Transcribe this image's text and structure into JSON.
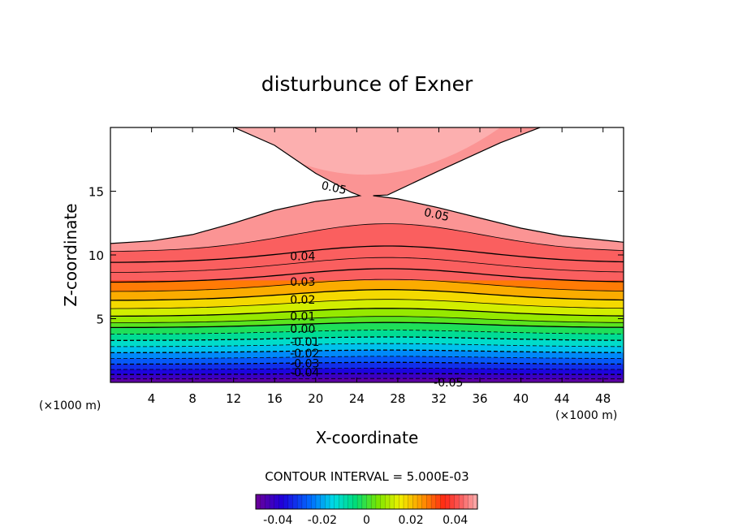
{
  "chart_data": {
    "type": "contour",
    "title": "disturbunce of Exner",
    "xlabel": "X-coordinate",
    "ylabel": "Z-coordinate",
    "x_unit": "(×1000 m)",
    "y_unit": "(×1000 m)",
    "xlim": [
      0,
      50
    ],
    "ylim": [
      0,
      20
    ],
    "x_ticks": [
      4,
      8,
      12,
      16,
      20,
      24,
      28,
      32,
      36,
      40,
      44,
      48
    ],
    "y_ticks": [
      5,
      10,
      15
    ],
    "x_tick_labels": [
      "4",
      "8",
      "12",
      "16",
      "20",
      "24",
      "28",
      "32",
      "36",
      "40",
      "44",
      "48"
    ],
    "y_tick_labels": [
      "5",
      "10",
      "15"
    ],
    "contour_interval_text": "CONTOUR INTERVAL = 5.000E-03",
    "contour_levels": [
      -0.05,
      -0.045,
      -0.04,
      -0.035,
      -0.03,
      -0.025,
      -0.02,
      -0.015,
      -0.01,
      -0.005,
      0.0,
      0.005,
      0.01,
      0.015,
      0.02,
      0.025,
      0.03,
      0.035,
      0.04,
      0.045,
      0.05
    ],
    "contour_labels": [
      {
        "text": "0.05",
        "x": 20.5,
        "z": 15.5,
        "rot": 12
      },
      {
        "text": "0.05",
        "x": 30.5,
        "z": 13.4,
        "rot": 12
      },
      {
        "text": "0.04",
        "x": 17.5,
        "z": 9.9,
        "rot": 0
      },
      {
        "text": "0.03",
        "x": 17.5,
        "z": 7.9,
        "rot": 0
      },
      {
        "text": "0.02",
        "x": 17.5,
        "z": 6.5,
        "rot": 0
      },
      {
        "text": "0.01",
        "x": 17.5,
        "z": 5.2,
        "rot": 0
      },
      {
        "text": "0.00",
        "x": 17.5,
        "z": 4.2,
        "rot": 0
      },
      {
        "text": "-0.01",
        "x": 17.5,
        "z": 3.2,
        "rot": 0
      },
      {
        "text": "-0.02",
        "x": 17.5,
        "z": 2.3,
        "rot": 0
      },
      {
        "text": "-0.03",
        "x": 17.5,
        "z": 1.5,
        "rot": 0
      },
      {
        "text": "-0.04",
        "x": 17.5,
        "z": 0.8,
        "rot": 0
      },
      {
        "text": "-0.05",
        "x": 31.5,
        "z": 0.0,
        "rot": 0
      }
    ],
    "colorbar": {
      "min": -0.05,
      "max": 0.05,
      "tick_labels": [
        "-0.04",
        "-0.02",
        "0",
        "0.02",
        "0.04"
      ],
      "tick_values": [
        -0.04,
        -0.02,
        0,
        0.02,
        0.04
      ]
    }
  }
}
